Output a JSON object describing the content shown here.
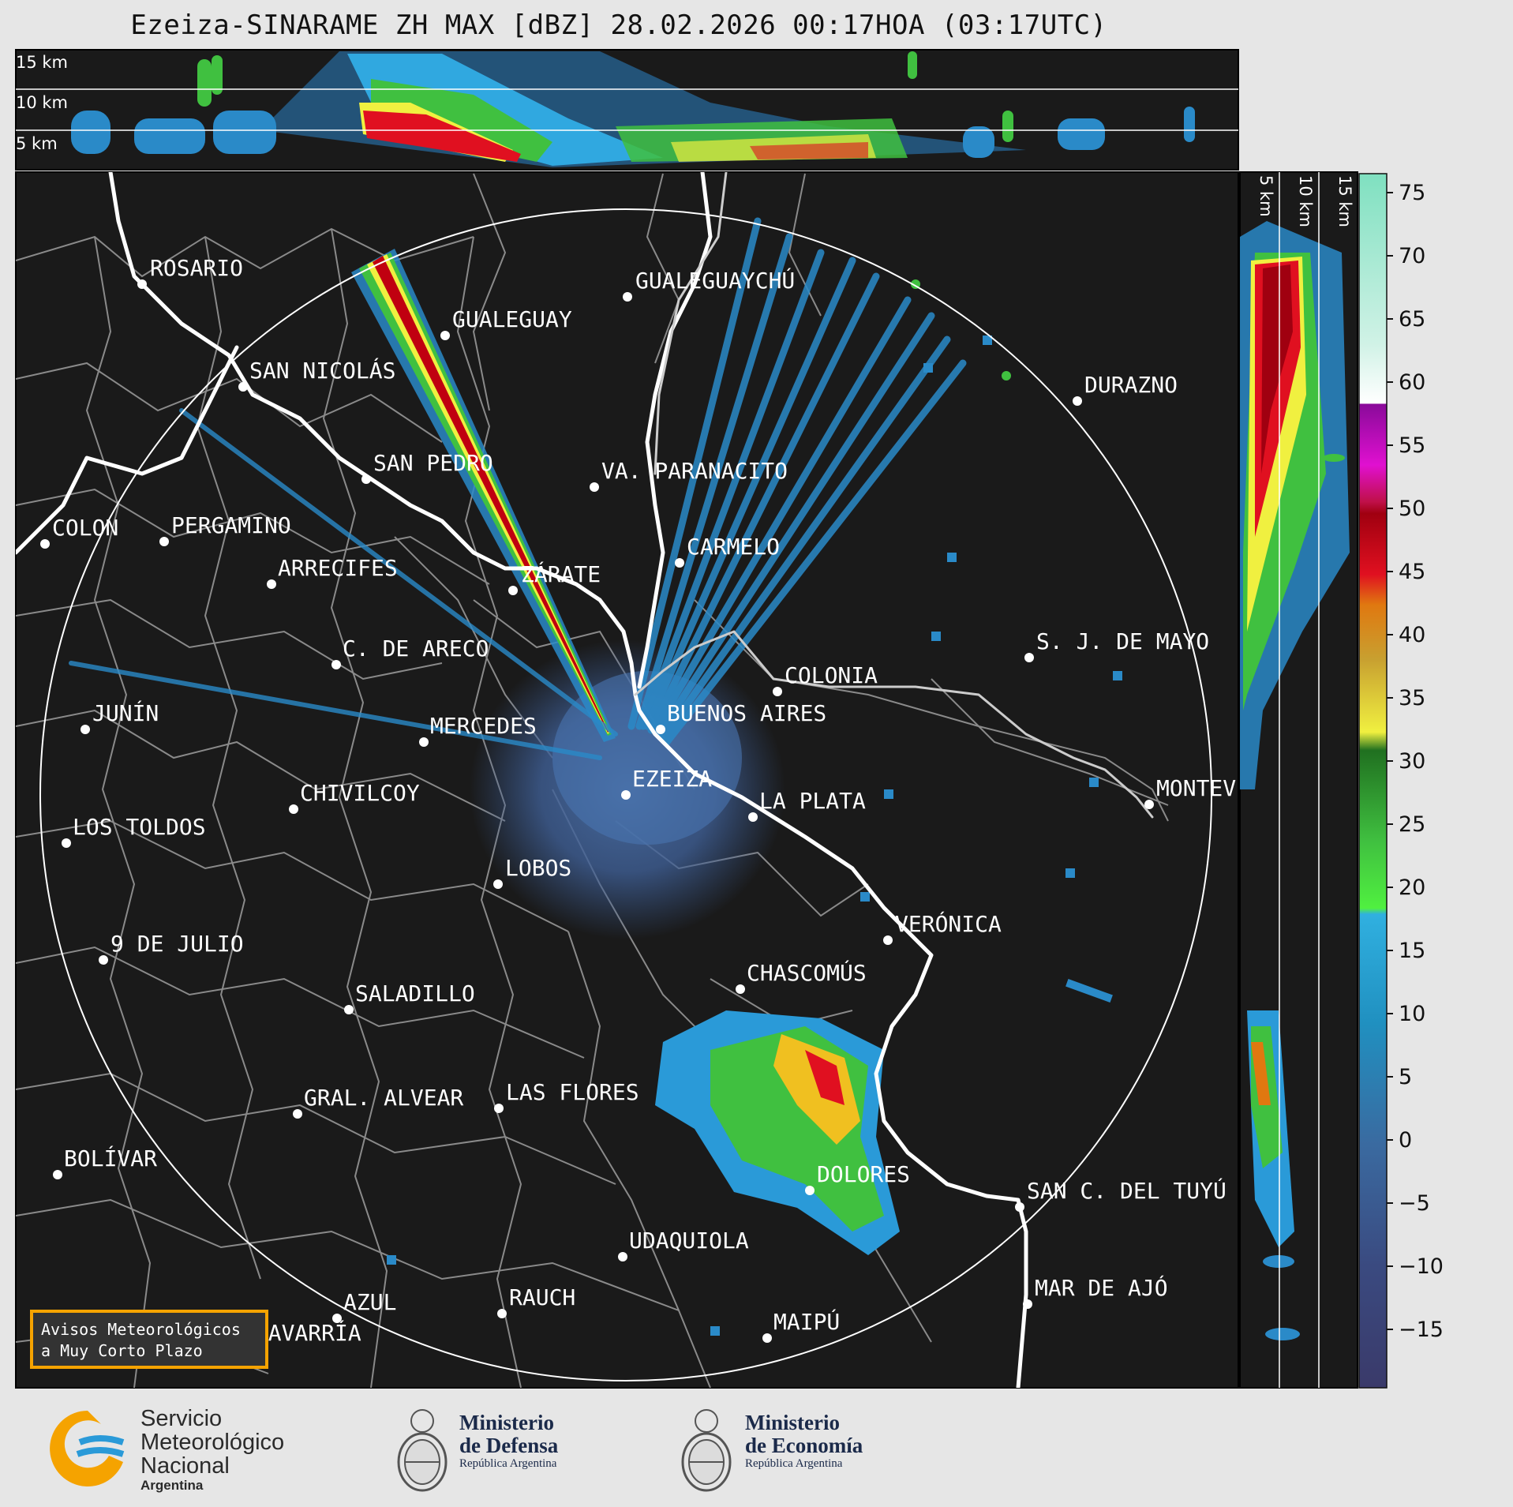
{
  "title": "Ezeiza-SINARAME ZH MAX [dBZ] 28.02.2026 00:17HOA (03:17UTC)",
  "top_panel_labels": [
    "15 km",
    "10 km",
    "5 km"
  ],
  "side_panel_labels": [
    "5 km",
    "10 km",
    "15 km"
  ],
  "colorbar": {
    "unit": "dBZ",
    "ticks": [
      "75",
      "70",
      "65",
      "60",
      "55",
      "50",
      "45",
      "40",
      "35",
      "30",
      "25",
      "20",
      "15",
      "10",
      "5",
      "0",
      "−5",
      "−10",
      "−15"
    ]
  },
  "cities": [
    {
      "name": "ROSARIO"
    },
    {
      "name": "GUALEGUAYCHÚ"
    },
    {
      "name": "GUALEGUAY"
    },
    {
      "name": "SAN NICOLÁS"
    },
    {
      "name": "DURAZNO"
    },
    {
      "name": "SAN PEDRO"
    },
    {
      "name": "VA. PARANACITO"
    },
    {
      "name": "COLON"
    },
    {
      "name": "PERGAMINO"
    },
    {
      "name": "CARMELO"
    },
    {
      "name": "ARRECIFES"
    },
    {
      "name": "ZÁRATE"
    },
    {
      "name": "S. J. DE MAYO"
    },
    {
      "name": "C. DE ARECO"
    },
    {
      "name": "COLONIA"
    },
    {
      "name": "JUNÍN"
    },
    {
      "name": "BUENOS AIRES"
    },
    {
      "name": "MERCEDES"
    },
    {
      "name": "EZEIZA"
    },
    {
      "name": "MONTEV"
    },
    {
      "name": "CHIVILCOY"
    },
    {
      "name": "LA PLATA"
    },
    {
      "name": "LOS TOLDOS"
    },
    {
      "name": "LOBOS"
    },
    {
      "name": "VERÓNICA"
    },
    {
      "name": "9 DE JULIO"
    },
    {
      "name": "CHASCOMÚS"
    },
    {
      "name": "SALADILLO"
    },
    {
      "name": "GRAL. ALVEAR"
    },
    {
      "name": "LAS FLORES"
    },
    {
      "name": "BOLÍVAR"
    },
    {
      "name": "DOLORES"
    },
    {
      "name": "SAN C. DEL TUYÚ"
    },
    {
      "name": "UDAQUIOLA"
    },
    {
      "name": "AZUL"
    },
    {
      "name": "RAUCH"
    },
    {
      "name": "MAR DE AJÓ"
    },
    {
      "name": "OLAVARRÍA"
    },
    {
      "name": "MAIPÚ"
    }
  ],
  "warning_box": {
    "line1": "Avisos Meteorológicos",
    "line2": "a Muy Corto Plazo",
    "border_color": "#f5a300"
  },
  "logos": {
    "smn": {
      "line1": "Servicio",
      "line2": "Meteorológico",
      "line3": "Nacional",
      "line4": "Argentina"
    },
    "defensa": {
      "line1": "Ministerio",
      "line2": "de Defensa",
      "line3": "República Argentina"
    },
    "economia": {
      "line1": "Ministerio",
      "line2": "de Economía",
      "line3": "República Argentina"
    }
  },
  "colors": {
    "map_bg": "#1a1a1a",
    "border": "#888888",
    "coast": "#ffffff",
    "page_bg": "#e6e6e6"
  }
}
